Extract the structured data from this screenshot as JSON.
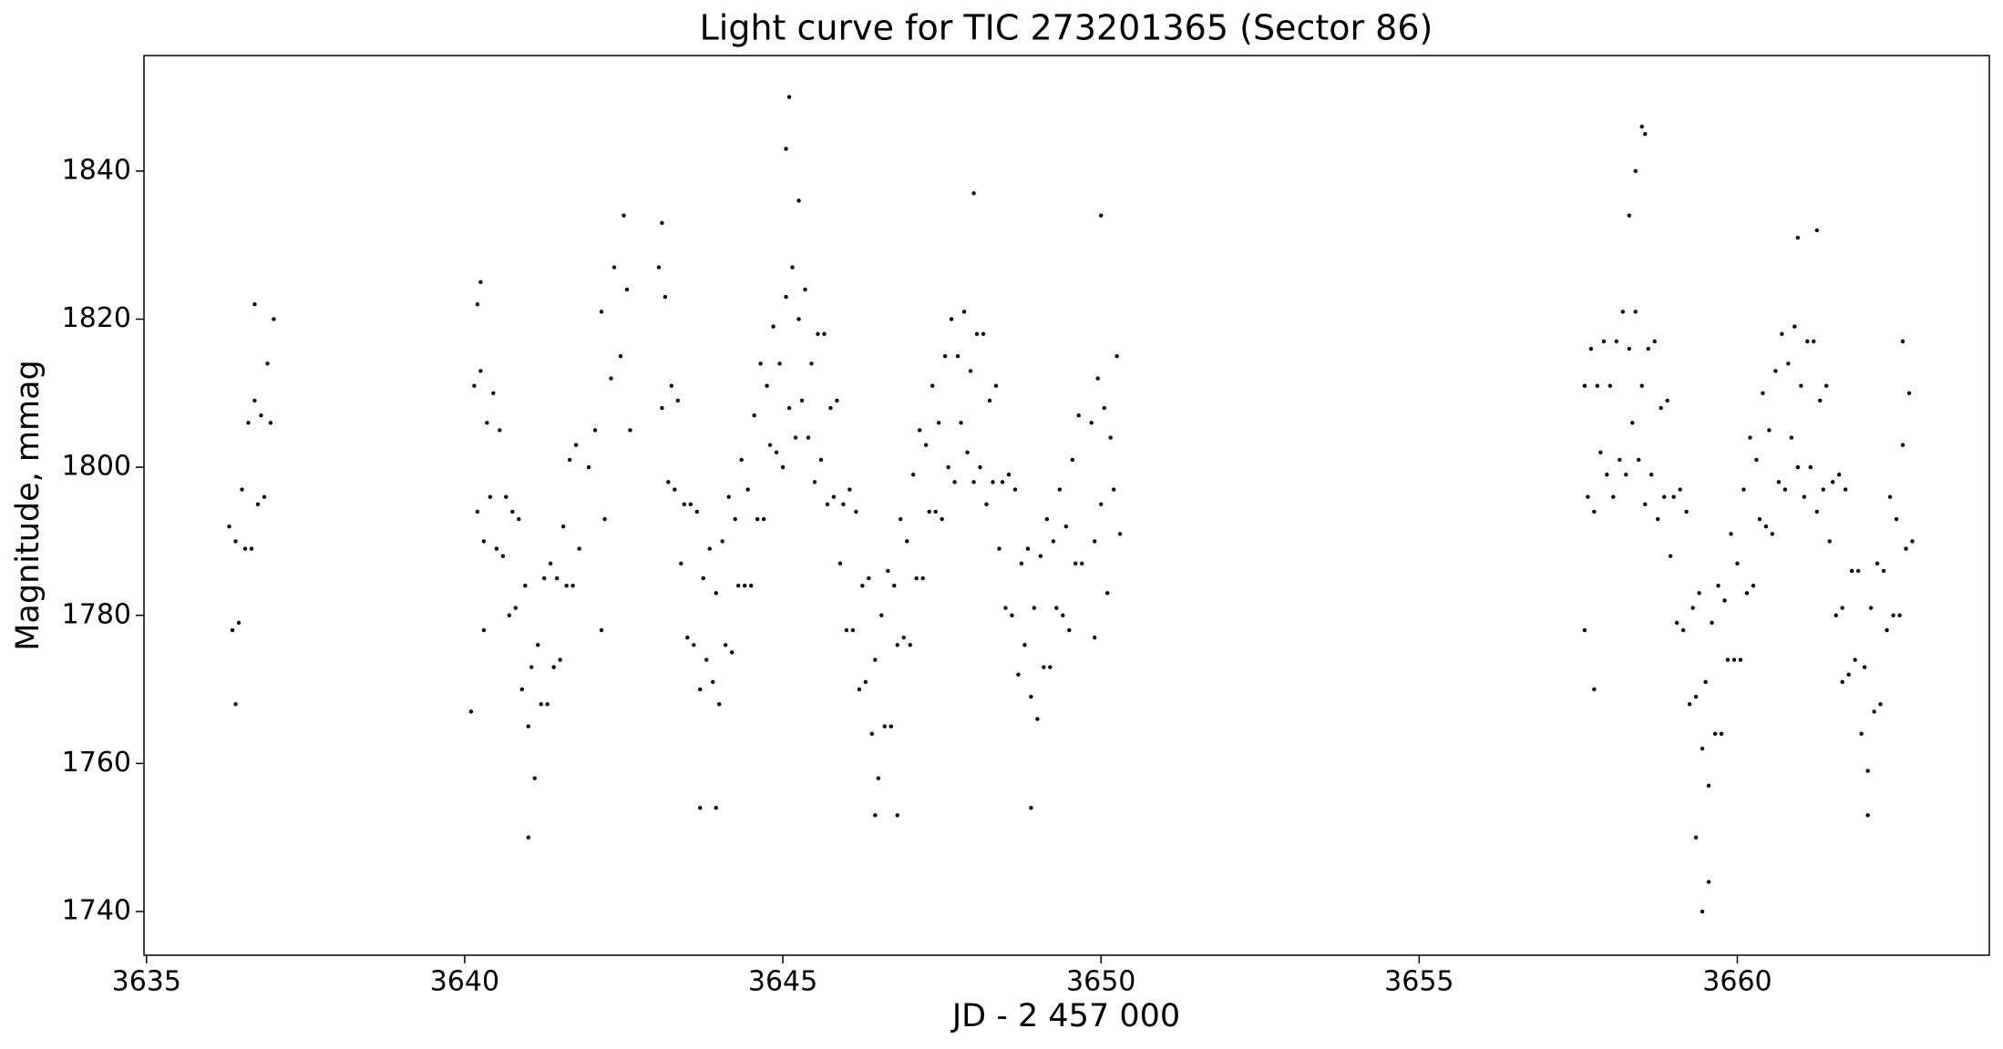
{
  "chart_data": {
    "type": "scatter",
    "title": "Light curve for TIC 273201365 (Sector 86)",
    "xlabel": "JD - 2 457 000",
    "ylabel": "Magnitude, mmag",
    "color": "#000000",
    "xlim": [
      3634.96,
      3663.96
    ],
    "ylim": [
      1734.1,
      1855.6
    ],
    "xticks": [
      3635,
      3640,
      3645,
      3650,
      3655,
      3660
    ],
    "yticks": [
      1740,
      1760,
      1780,
      1800,
      1820,
      1840
    ],
    "x": [
      3636.3,
      3636.35,
      3636.4,
      3636.45,
      3636.5,
      3636.55,
      3636.6,
      3636.65,
      3636.7,
      3636.75,
      3636.8,
      3636.85,
      3636.9,
      3636.95,
      3637.0,
      3640.15,
      3640.2,
      3640.25,
      3640.3,
      3640.35,
      3640.4,
      3640.45,
      3640.5,
      3640.55,
      3640.6,
      3640.65,
      3640.7,
      3640.75,
      3640.8,
      3640.85,
      3640.9,
      3640.95,
      3641.0,
      3641.05,
      3641.1,
      3641.15,
      3641.2,
      3641.25,
      3641.3,
      3641.35,
      3641.4,
      3641.45,
      3641.5,
      3641.55,
      3641.6,
      3641.65,
      3641.7,
      3641.75,
      3641.8,
      3641.95,
      3642.05,
      3642.15,
      3642.2,
      3642.3,
      3642.35,
      3642.45,
      3642.5,
      3642.55,
      3642.6,
      3643.05,
      3643.1,
      3643.15,
      3643.2,
      3643.25,
      3643.3,
      3643.35,
      3643.4,
      3643.45,
      3643.5,
      3643.55,
      3643.6,
      3643.65,
      3643.7,
      3643.75,
      3643.8,
      3643.85,
      3643.9,
      3643.95,
      3644.0,
      3644.05,
      3644.1,
      3644.15,
      3644.2,
      3644.25,
      3644.3,
      3644.35,
      3644.4,
      3644.45,
      3644.5,
      3644.55,
      3644.6,
      3644.65,
      3644.7,
      3644.75,
      3644.8,
      3644.85,
      3644.9,
      3644.95,
      3645.0,
      3645.05,
      3645.1,
      3645.15,
      3645.2,
      3645.25,
      3645.3,
      3645.35,
      3645.4,
      3645.45,
      3645.5,
      3645.55,
      3645.6,
      3645.65,
      3645.7,
      3645.75,
      3645.8,
      3645.85,
      3645.9,
      3645.95,
      3646.0,
      3646.05,
      3646.1,
      3646.15,
      3646.2,
      3646.25,
      3646.3,
      3646.35,
      3646.4,
      3646.45,
      3646.5,
      3646.55,
      3646.6,
      3646.65,
      3646.7,
      3646.75,
      3646.8,
      3646.85,
      3646.9,
      3646.95,
      3647.0,
      3647.05,
      3647.1,
      3647.15,
      3647.2,
      3647.25,
      3647.3,
      3647.35,
      3647.4,
      3647.45,
      3647.5,
      3647.55,
      3647.6,
      3647.65,
      3647.7,
      3647.75,
      3647.8,
      3647.85,
      3647.9,
      3647.95,
      3648.0,
      3648.05,
      3648.1,
      3648.15,
      3648.2,
      3648.25,
      3648.3,
      3648.35,
      3648.4,
      3648.45,
      3648.5,
      3648.55,
      3648.6,
      3648.65,
      3648.7,
      3648.75,
      3648.8,
      3648.85,
      3648.9,
      3648.95,
      3649.0,
      3649.05,
      3649.1,
      3649.15,
      3649.2,
      3649.25,
      3649.3,
      3649.35,
      3649.4,
      3649.45,
      3649.5,
      3649.55,
      3649.6,
      3649.65,
      3649.7,
      3649.85,
      3649.9,
      3649.95,
      3650.0,
      3650.05,
      3650.1,
      3650.15,
      3650.2,
      3650.25,
      3650.3,
      3657.6,
      3657.65,
      3657.7,
      3657.75,
      3657.8,
      3657.85,
      3657.9,
      3657.95,
      3658.0,
      3658.05,
      3658.1,
      3658.15,
      3658.2,
      3658.25,
      3658.3,
      3658.35,
      3658.4,
      3658.45,
      3658.5,
      3658.55,
      3658.6,
      3658.65,
      3658.7,
      3658.75,
      3658.8,
      3658.85,
      3658.9,
      3658.95,
      3659.0,
      3659.05,
      3659.1,
      3659.15,
      3659.2,
      3659.25,
      3659.3,
      3659.35,
      3659.4,
      3659.45,
      3659.5,
      3659.55,
      3659.6,
      3659.65,
      3659.7,
      3659.75,
      3659.8,
      3659.85,
      3659.9,
      3659.95,
      3660.0,
      3660.05,
      3660.1,
      3660.15,
      3660.2,
      3660.25,
      3660.3,
      3660.35,
      3660.4,
      3660.45,
      3660.5,
      3660.55,
      3660.6,
      3660.65,
      3660.7,
      3660.75,
      3660.8,
      3660.85,
      3660.9,
      3660.95,
      3661.0,
      3661.05,
      3661.1,
      3661.15,
      3661.2,
      3661.25,
      3661.3,
      3661.35,
      3661.4,
      3661.45,
      3661.5,
      3661.55,
      3661.6,
      3661.65,
      3661.7,
      3661.75,
      3661.8,
      3661.85,
      3661.9,
      3661.95,
      3662.0,
      3662.05,
      3662.1,
      3662.15,
      3662.2,
      3662.25,
      3662.3,
      3662.35,
      3662.4,
      3662.45,
      3662.5,
      3662.55,
      3662.6,
      3662.65,
      3662.7,
      3662.75,
      3636.4,
      3636.7,
      3640.2,
      3640.3,
      3641.0,
      3640.1,
      3640.25,
      3642.15,
      3645.1,
      3645.05,
      3645.25,
      3643.7,
      3643.95,
      3646.45,
      3646.8,
      3648.0,
      3648.9,
      3650.0,
      3649.9,
      3643.1,
      3658.4,
      3658.5,
      3658.55,
      3658.3,
      3659.45,
      3659.55,
      3659.35,
      3660.95,
      3661.25,
      3662.05,
      3662.6,
      3657.75,
      3657.6,
      3661.65
    ],
    "values": [
      1792,
      1778,
      1790,
      1779,
      1797,
      1789,
      1806,
      1789,
      1809,
      1795,
      1807,
      1796,
      1814,
      1806,
      1820,
      1811,
      1794,
      1813,
      1790,
      1806,
      1796,
      1810,
      1789,
      1805,
      1788,
      1796,
      1780,
      1794,
      1781,
      1793,
      1770,
      1784,
      1765,
      1773,
      1758,
      1776,
      1768,
      1785,
      1768,
      1787,
      1773,
      1785,
      1774,
      1792,
      1784,
      1801,
      1784,
      1803,
      1789,
      1800,
      1805,
      1821,
      1793,
      1812,
      1827,
      1815,
      1834,
      1824,
      1805,
      1827,
      1808,
      1823,
      1798,
      1811,
      1797,
      1809,
      1787,
      1795,
      1777,
      1795,
      1776,
      1794,
      1770,
      1785,
      1774,
      1789,
      1771,
      1783,
      1768,
      1790,
      1776,
      1796,
      1775,
      1793,
      1784,
      1801,
      1784,
      1797,
      1784,
      1807,
      1793,
      1814,
      1793,
      1811,
      1803,
      1819,
      1802,
      1814,
      1800,
      1823,
      1808,
      1827,
      1804,
      1820,
      1809,
      1824,
      1804,
      1814,
      1798,
      1818,
      1801,
      1818,
      1795,
      1808,
      1796,
      1809,
      1787,
      1795,
      1778,
      1797,
      1778,
      1794,
      1770,
      1784,
      1771,
      1785,
      1764,
      1774,
      1758,
      1780,
      1765,
      1786,
      1765,
      1784,
      1776,
      1793,
      1777,
      1790,
      1776,
      1799,
      1785,
      1805,
      1785,
      1803,
      1794,
      1811,
      1794,
      1806,
      1793,
      1815,
      1800,
      1820,
      1798,
      1815,
      1806,
      1821,
      1802,
      1813,
      1798,
      1818,
      1800,
      1818,
      1795,
      1809,
      1798,
      1811,
      1789,
      1798,
      1781,
      1799,
      1780,
      1797,
      1772,
      1787,
      1776,
      1789,
      1769,
      1781,
      1766,
      1788,
      1773,
      1793,
      1773,
      1790,
      1781,
      1797,
      1780,
      1792,
      1778,
      1801,
      1787,
      1807,
      1787,
      1806,
      1790,
      1812,
      1795,
      1808,
      1783,
      1804,
      1797,
      1815,
      1791,
      1811,
      1796,
      1816,
      1794,
      1811,
      1802,
      1817,
      1799,
      1811,
      1796,
      1817,
      1801,
      1821,
      1799,
      1816,
      1806,
      1821,
      1801,
      1811,
      1795,
      1816,
      1799,
      1817,
      1793,
      1808,
      1796,
      1809,
      1788,
      1796,
      1779,
      1797,
      1778,
      1794,
      1768,
      1781,
      1769,
      1783,
      1762,
      1771,
      1757,
      1779,
      1764,
      1784,
      1764,
      1782,
      1774,
      1791,
      1774,
      1787,
      1774,
      1797,
      1783,
      1804,
      1784,
      1801,
      1793,
      1810,
      1792,
      1805,
      1791,
      1813,
      1798,
      1818,
      1797,
      1814,
      1804,
      1819,
      1800,
      1811,
      1796,
      1817,
      1800,
      1817,
      1794,
      1809,
      1797,
      1811,
      1790,
      1798,
      1780,
      1799,
      1781,
      1797,
      1772,
      1786,
      1774,
      1786,
      1764,
      1773,
      1759,
      1781,
      1767,
      1787,
      1768,
      1786,
      1778,
      1796,
      1780,
      1793,
      1780,
      1803,
      1789,
      1810,
      1790,
      1768,
      1822,
      1822,
      1778,
      1750,
      1767,
      1825,
      1778,
      1850,
      1843,
      1836,
      1754,
      1754,
      1753,
      1753,
      1837,
      1754,
      1834,
      1777,
      1833,
      1840,
      1846,
      1845,
      1834,
      1740,
      1744,
      1750,
      1831,
      1832,
      1753,
      1817,
      1770,
      1778,
      1771
    ]
  }
}
